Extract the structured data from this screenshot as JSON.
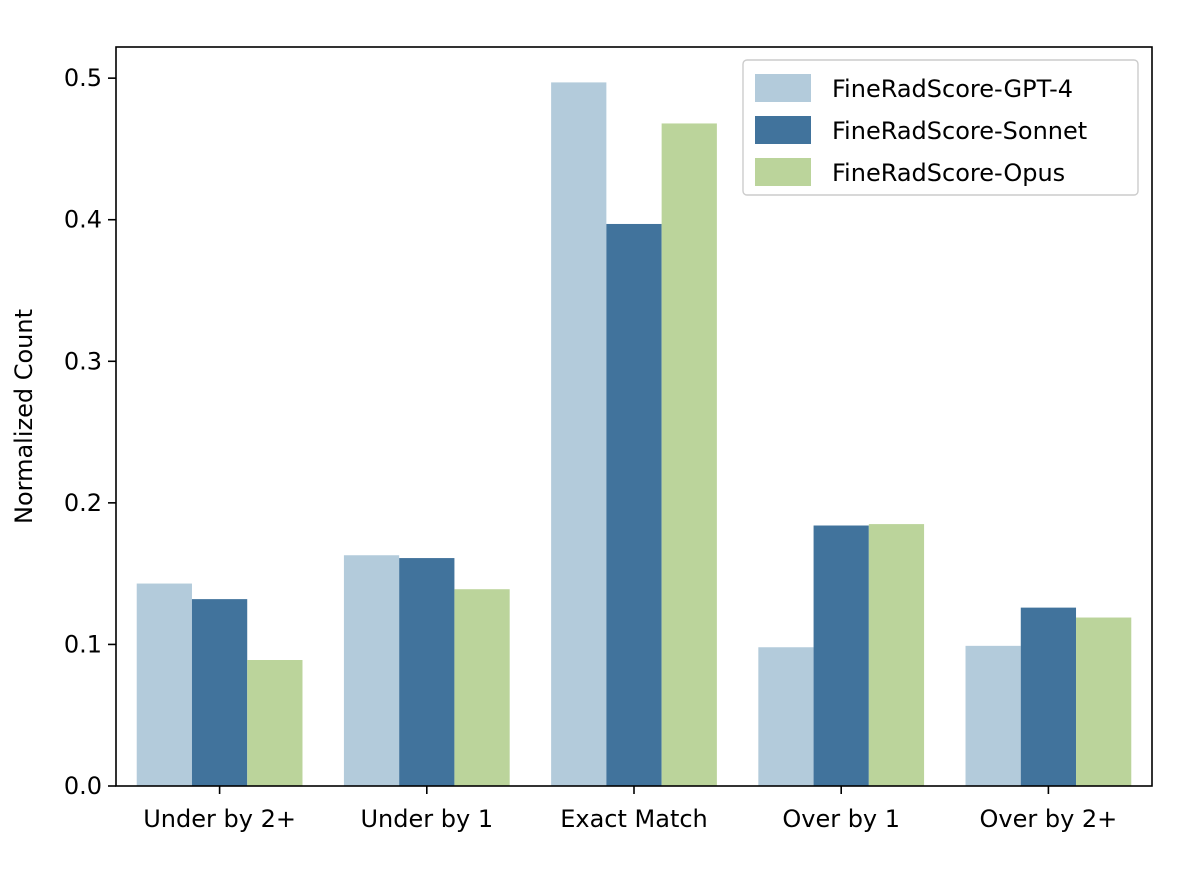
{
  "chart_data": {
    "type": "bar",
    "categories": [
      "Under by 2+",
      "Under by 1",
      "Exact Match",
      "Over by 1",
      "Over by 2+"
    ],
    "series": [
      {
        "name": "FineRadScore-GPT-4",
        "color": "#b3cbdb",
        "values": [
          0.143,
          0.163,
          0.497,
          0.098,
          0.099
        ]
      },
      {
        "name": "FineRadScore-Sonnet",
        "color": "#41739c",
        "values": [
          0.132,
          0.161,
          0.397,
          0.184,
          0.126
        ]
      },
      {
        "name": "FineRadScore-Opus",
        "color": "#bbd49b",
        "values": [
          0.089,
          0.139,
          0.468,
          0.185,
          0.119
        ]
      }
    ],
    "xlabel": "",
    "ylabel": "Normalized Count",
    "ylim": [
      0,
      0.522
    ],
    "yticks": [
      "0.0",
      "0.1",
      "0.2",
      "0.3",
      "0.4",
      "0.5"
    ],
    "legend_position": "top-right",
    "grid": false
  }
}
